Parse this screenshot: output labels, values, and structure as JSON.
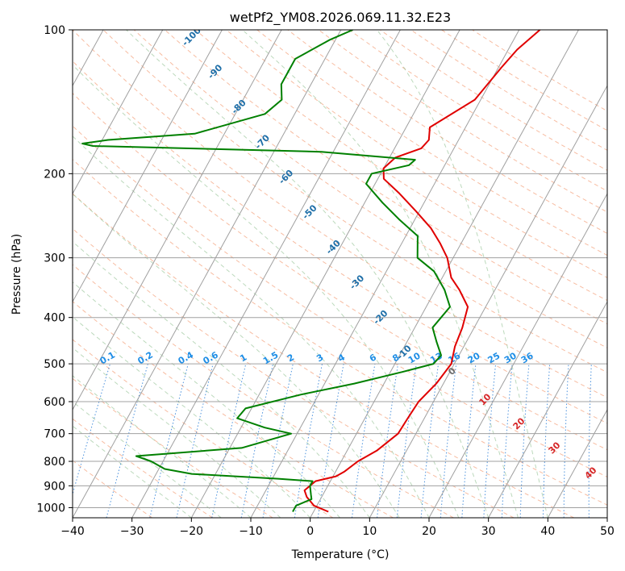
{
  "chart_data": {
    "type": "line",
    "title": "wetPf2_YM08.2026.069.11.32.E23",
    "xlabel": "Temperature (°C)",
    "ylabel": "Pressure (hPa)",
    "xlim": [
      -40,
      50
    ],
    "ylim": [
      1050,
      100
    ],
    "y_scale": "log",
    "grid": true,
    "x_ticks": [
      -40,
      -30,
      -20,
      -10,
      0,
      10,
      20,
      30,
      40,
      50
    ],
    "x_tick_labels": [
      "−40",
      "−30",
      "−20",
      "−10",
      "0",
      "10",
      "20",
      "30",
      "40",
      "50"
    ],
    "y_ticks": [
      1000,
      900,
      800,
      700,
      600,
      500,
      400,
      300,
      200,
      100
    ],
    "y_tick_labels": [
      "1000",
      "900",
      "800",
      "700",
      "600",
      "500",
      "400",
      "300",
      "200",
      "100"
    ],
    "series": [
      {
        "color": "#e00000",
        "points": [
          [
            1020,
            2.5
          ],
          [
            990,
            -0.5
          ],
          [
            950,
            -2.5
          ],
          [
            920,
            -3.5
          ],
          [
            880,
            -2.5
          ],
          [
            860,
            0.5
          ],
          [
            840,
            1.5
          ],
          [
            800,
            2.8
          ],
          [
            760,
            5.0
          ],
          [
            700,
            7.0
          ],
          [
            650,
            7.2
          ],
          [
            600,
            7.5
          ],
          [
            550,
            8.8
          ],
          [
            500,
            9.5
          ],
          [
            460,
            8.5
          ],
          [
            420,
            8.0
          ],
          [
            380,
            7.0
          ],
          [
            350,
            4.0
          ],
          [
            330,
            1.5
          ],
          [
            300,
            -1.0
          ],
          [
            280,
            -3.5
          ],
          [
            260,
            -6.5
          ],
          [
            240,
            -10.5
          ],
          [
            220,
            -15.0
          ],
          [
            205,
            -19.0
          ],
          [
            195,
            -20.0
          ],
          [
            185,
            -19.0
          ],
          [
            177,
            -15.5
          ],
          [
            170,
            -15.0
          ],
          [
            160,
            -16.0
          ],
          [
            140,
            -11.0
          ],
          [
            120,
            -9.5
          ],
          [
            110,
            -8.5
          ],
          [
            100,
            -6.5
          ]
        ]
      },
      {
        "color": "#008000",
        "points": [
          [
            1020,
            -3.5
          ],
          [
            990,
            -3.5
          ],
          [
            960,
            -1.5
          ],
          [
            940,
            -2.0
          ],
          [
            900,
            -3.0
          ],
          [
            880,
            -3.0
          ],
          [
            870,
            -9.0
          ],
          [
            850,
            -24.0
          ],
          [
            830,
            -29.0
          ],
          [
            800,
            -32.0
          ],
          [
            780,
            -35.0
          ],
          [
            750,
            -18.0
          ],
          [
            700,
            -11.0
          ],
          [
            680,
            -16.0
          ],
          [
            650,
            -21.5
          ],
          [
            620,
            -21.0
          ],
          [
            580,
            -13.0
          ],
          [
            550,
            -5.0
          ],
          [
            520,
            2.0
          ],
          [
            500,
            6.5
          ],
          [
            480,
            7.0
          ],
          [
            450,
            5.0
          ],
          [
            420,
            3.0
          ],
          [
            380,
            4.0
          ],
          [
            350,
            1.5
          ],
          [
            320,
            -2.0
          ],
          [
            300,
            -6.0
          ],
          [
            270,
            -8.0
          ],
          [
            250,
            -12.5
          ],
          [
            230,
            -17.0
          ],
          [
            210,
            -21.5
          ],
          [
            200,
            -21.5
          ],
          [
            192,
            -16.0
          ],
          [
            187,
            -15.5
          ],
          [
            180,
            -32.0
          ],
          [
            175,
            -71.0
          ],
          [
            173,
            -73.0
          ],
          [
            170,
            -69.0
          ],
          [
            165,
            -55.0
          ],
          [
            150,
            -45.0
          ],
          [
            140,
            -43.5
          ],
          [
            130,
            -45.0
          ],
          [
            115,
            -45.0
          ],
          [
            105,
            -41.0
          ],
          [
            100,
            -38.0
          ]
        ]
      }
    ],
    "dry_adiabat_labels": [
      "-100",
      "-90",
      "-80",
      "-70",
      "-60",
      "-50",
      "-40",
      "-30",
      "-20",
      "-10"
    ],
    "mixing_ratio_labels": [
      "0.1",
      "0.2",
      "0.4",
      "0.6",
      "1",
      "1.5",
      "2",
      "3",
      "4",
      "6",
      "8",
      "10",
      "13",
      "16",
      "20",
      "25",
      "30",
      "36"
    ],
    "moist_adiabat_labels": [
      "0",
      "10",
      "20",
      "30",
      "40"
    ]
  }
}
